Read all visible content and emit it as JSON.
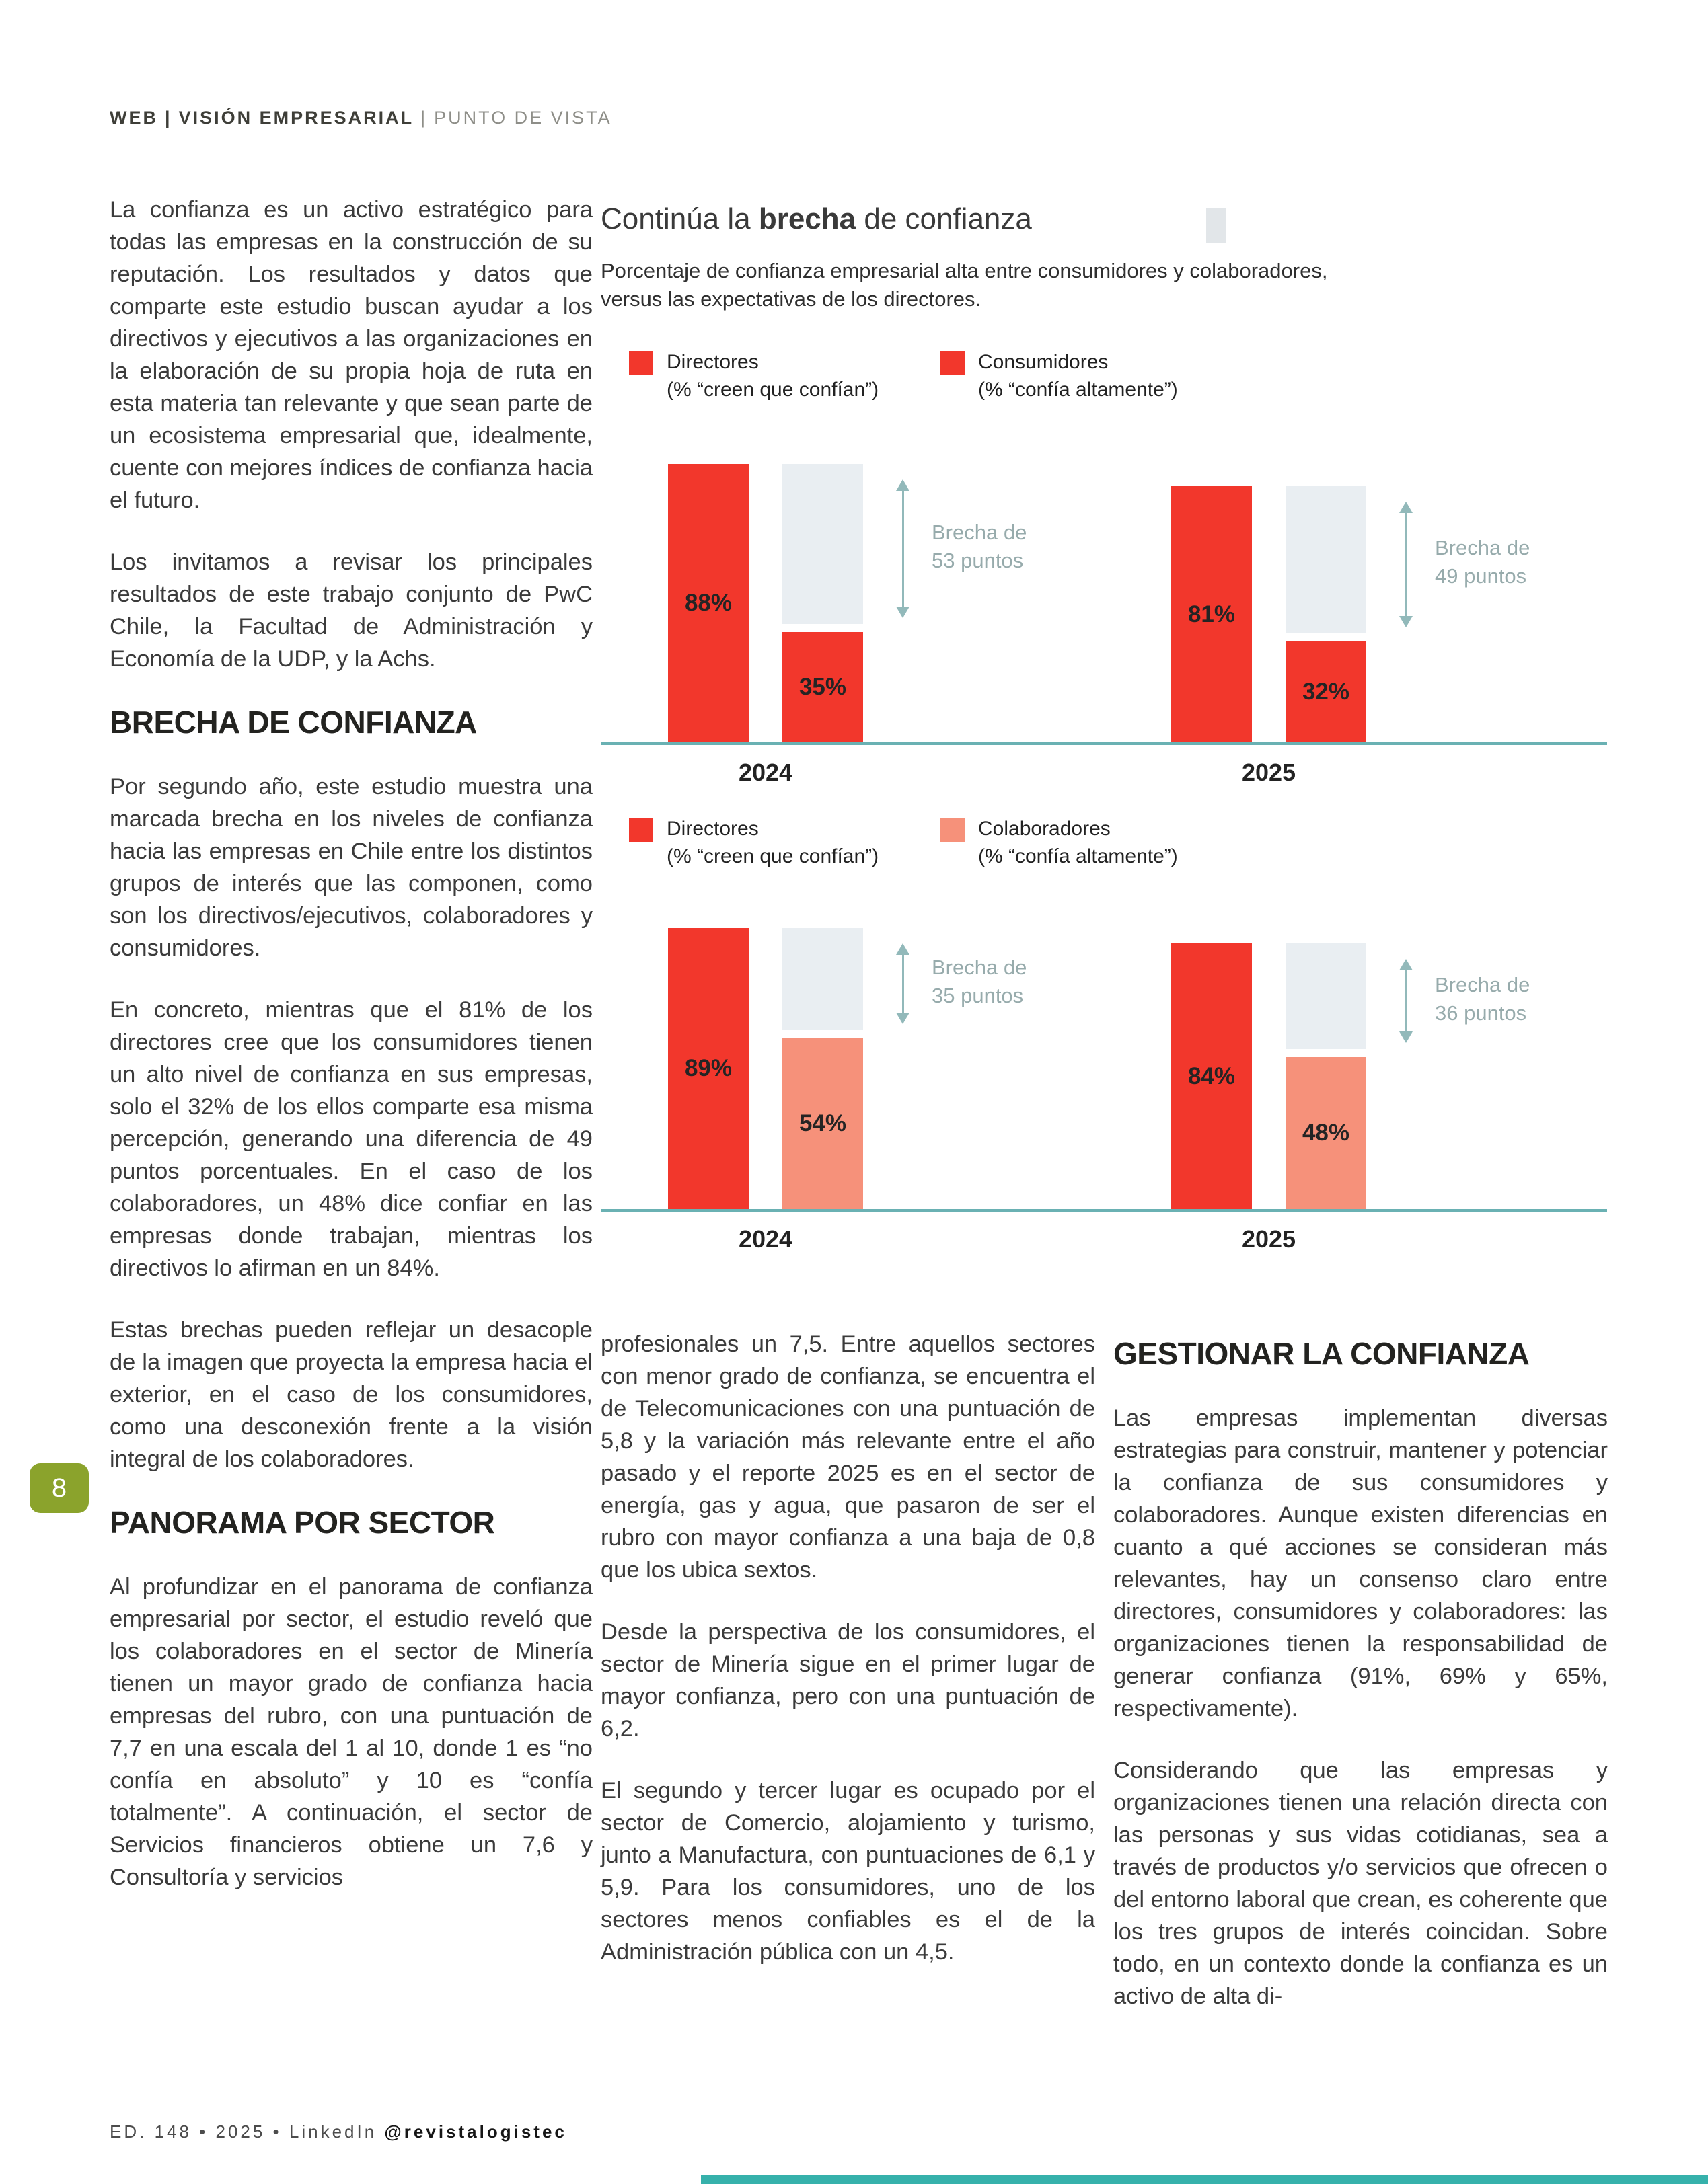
{
  "colors": {
    "accent_red": "#f2372c",
    "salmon": "#f6917a",
    "ghost_gray": "#e9eef2",
    "baseline_teal": "#6ab1b3",
    "arrow_teal": "#92b9ba",
    "gap_text": "#97abac",
    "badge_green": "#8ba32c",
    "bottom_bar_teal": "#36b1ab"
  },
  "header": {
    "seg1": "WEB",
    "sep": "|",
    "seg2": "VISIÓN EMPRESARIAL",
    "seg3": "PUNTO DE VISTA"
  },
  "page_number": "8",
  "footer": {
    "meta": "ED. 148 • 2025 • LinkedIn ",
    "handle": "@revistalogistec"
  },
  "columns": {
    "left": {
      "p1": "La confianza es un activo estratégico para todas las empresas en la construcción de su reputación. Los resultados y datos que comparte este estudio buscan ayudar a los directivos y ejecutivos a las organizaciones en la elaboración de su propia hoja de ruta en esta materia tan relevante y que sean parte de un ecosistema empresarial que, idealmente, cuente con mejores índices de confianza hacia el futuro.",
      "p2": "Los invitamos a revisar los principales resultados de este trabajo conjunto de PwC Chile, la Facultad de Administración y Economía de la UDP, y la Achs.",
      "h1": "BRECHA DE CONFIANZA",
      "p3": "Por segundo año, este estudio muestra una marcada brecha en los niveles de confianza hacia las empresas en Chile entre los distintos grupos de interés que las componen, como son los directivos/ejecutivos, colaboradores y consumidores.",
      "p4": "En concreto, mientras que el 81% de los directores cree que los consumidores tienen un alto nivel de confianza en sus empresas, solo el 32% de los ellos comparte esa misma percepción, generando una diferencia de 49 puntos porcentuales. En el caso de los colaboradores, un 48% dice confiar en las empresas donde trabajan, mientras los directivos lo afirman en un 84%.",
      "p5": "Estas brechas pueden reflejar un desacople de la imagen que proyecta la empresa hacia el exterior, en el caso de los consumidores, como una desconexión frente a la visión integral de los colaboradores.",
      "h2": "PANORAMA POR SECTOR",
      "p6": "Al profundizar en el panorama de confianza empresarial por sector, el estudio reveló que los colaboradores en el sector de Minería tienen un mayor grado de confianza hacia empresas del rubro, con una puntuación de 7,7 en una escala del 1 al 10, donde 1 es “no confía en absoluto” y 10 es “confía totalmente”. A continuación, el sector de Servicios financieros obtiene un 7,6 y Consultoría y servicios"
    },
    "middle": {
      "p1": "profesionales un 7,5. Entre aquellos sectores con menor grado de confianza, se encuentra el de Telecomunicaciones con una puntuación de 5,8 y la variación más relevante entre el año pasado y el reporte 2025 es en el sector de energía, gas y agua, que pasaron de ser el rubro con mayor confianza a una baja de 0,8 que los ubica sextos.",
      "p2": "Desde la perspectiva de los consumidores, el sector de Minería sigue en el primer lugar de mayor confianza, pero con una puntuación de 6,2.",
      "p3": "El segundo y tercer lugar es ocupado por el sector de Comercio, alojamiento y turismo, junto a Manufactura, con puntuaciones de 6,1 y 5,9. Para los consumidores, uno de los sectores menos confiables es el de la Administración pública con un 4,5."
    },
    "right": {
      "h": "GESTIONAR LA CONFIANZA",
      "p1": "Las empresas implementan diversas estrategias para construir, mantener y potenciar la confianza de sus consumidores y colaboradores. Aunque existen diferencias en cuanto a qué acciones se consideran más relevantes, hay un consenso claro entre directores, consumidores y colaboradores: las organizaciones tienen la responsabilidad de generar confianza (91%, 69% y 65%, respectivamente).",
      "p2": "Considerando que las empresas y organizaciones tienen una relación directa con las personas y sus vidas cotidianas, sea a través de productos y/o servicios que ofrecen o del entorno laboral que crean, es coherente que los tres grupos de interés coincidan. Sobre todo, en un contexto donde la confianza es un activo de alta di-"
    }
  },
  "chart_data": [
    {
      "type": "bar",
      "title_pre": "Continúa la ",
      "title_bold": "brecha",
      "title_post": " de confianza",
      "subtitle": "Porcentaje de confianza empresarial alta entre consumidores y colaboradores, versus las expectativas de los directores.",
      "ylim": [
        0,
        100
      ],
      "unit": "%",
      "grid": false,
      "legend_position": "top",
      "categories": [
        "2024",
        "2025"
      ],
      "legend": [
        {
          "label": "Directores",
          "sublabel": "(% “creen que confían”)",
          "color": "#f2372c"
        },
        {
          "label": "Consumidores",
          "sublabel": "(% “confía altamente”)",
          "color": "#f2372c"
        }
      ],
      "series": [
        {
          "name": "Directores",
          "values": [
            88,
            81
          ]
        },
        {
          "name": "Consumidores",
          "values": [
            35,
            32
          ]
        }
      ],
      "groups": [
        {
          "category": "2024",
          "director": {
            "value": 88,
            "label": "88%"
          },
          "other": {
            "value": 35,
            "label": "35%"
          },
          "gap": {
            "line1": "Brecha de",
            "line2": "53 puntos",
            "points": 53
          }
        },
        {
          "category": "2025",
          "director": {
            "value": 81,
            "label": "81%"
          },
          "other": {
            "value": 32,
            "label": "32%"
          },
          "gap": {
            "line1": "Brecha de",
            "line2": "49 puntos",
            "points": 49
          }
        }
      ]
    },
    {
      "type": "bar",
      "ylim": [
        0,
        100
      ],
      "unit": "%",
      "grid": false,
      "legend_position": "top",
      "categories": [
        "2024",
        "2025"
      ],
      "legend": [
        {
          "label": "Directores",
          "sublabel": "(% “creen que confían”)",
          "color": "#f2372c"
        },
        {
          "label": "Colaboradores",
          "sublabel": "(% “confía altamente”)",
          "color": "#f6917a"
        }
      ],
      "series": [
        {
          "name": "Directores",
          "values": [
            89,
            84
          ]
        },
        {
          "name": "Colaboradores",
          "values": [
            54,
            48
          ]
        }
      ],
      "groups": [
        {
          "category": "2024",
          "director": {
            "value": 89,
            "label": "89%"
          },
          "other": {
            "value": 54,
            "label": "54%"
          },
          "gap": {
            "line1": "Brecha de",
            "line2": "35 puntos",
            "points": 35
          }
        },
        {
          "category": "2025",
          "director": {
            "value": 84,
            "label": "84%"
          },
          "other": {
            "value": 48,
            "label": "48%"
          },
          "gap": {
            "line1": "Brecha de",
            "line2": "36 puntos",
            "points": 36
          }
        }
      ]
    }
  ]
}
